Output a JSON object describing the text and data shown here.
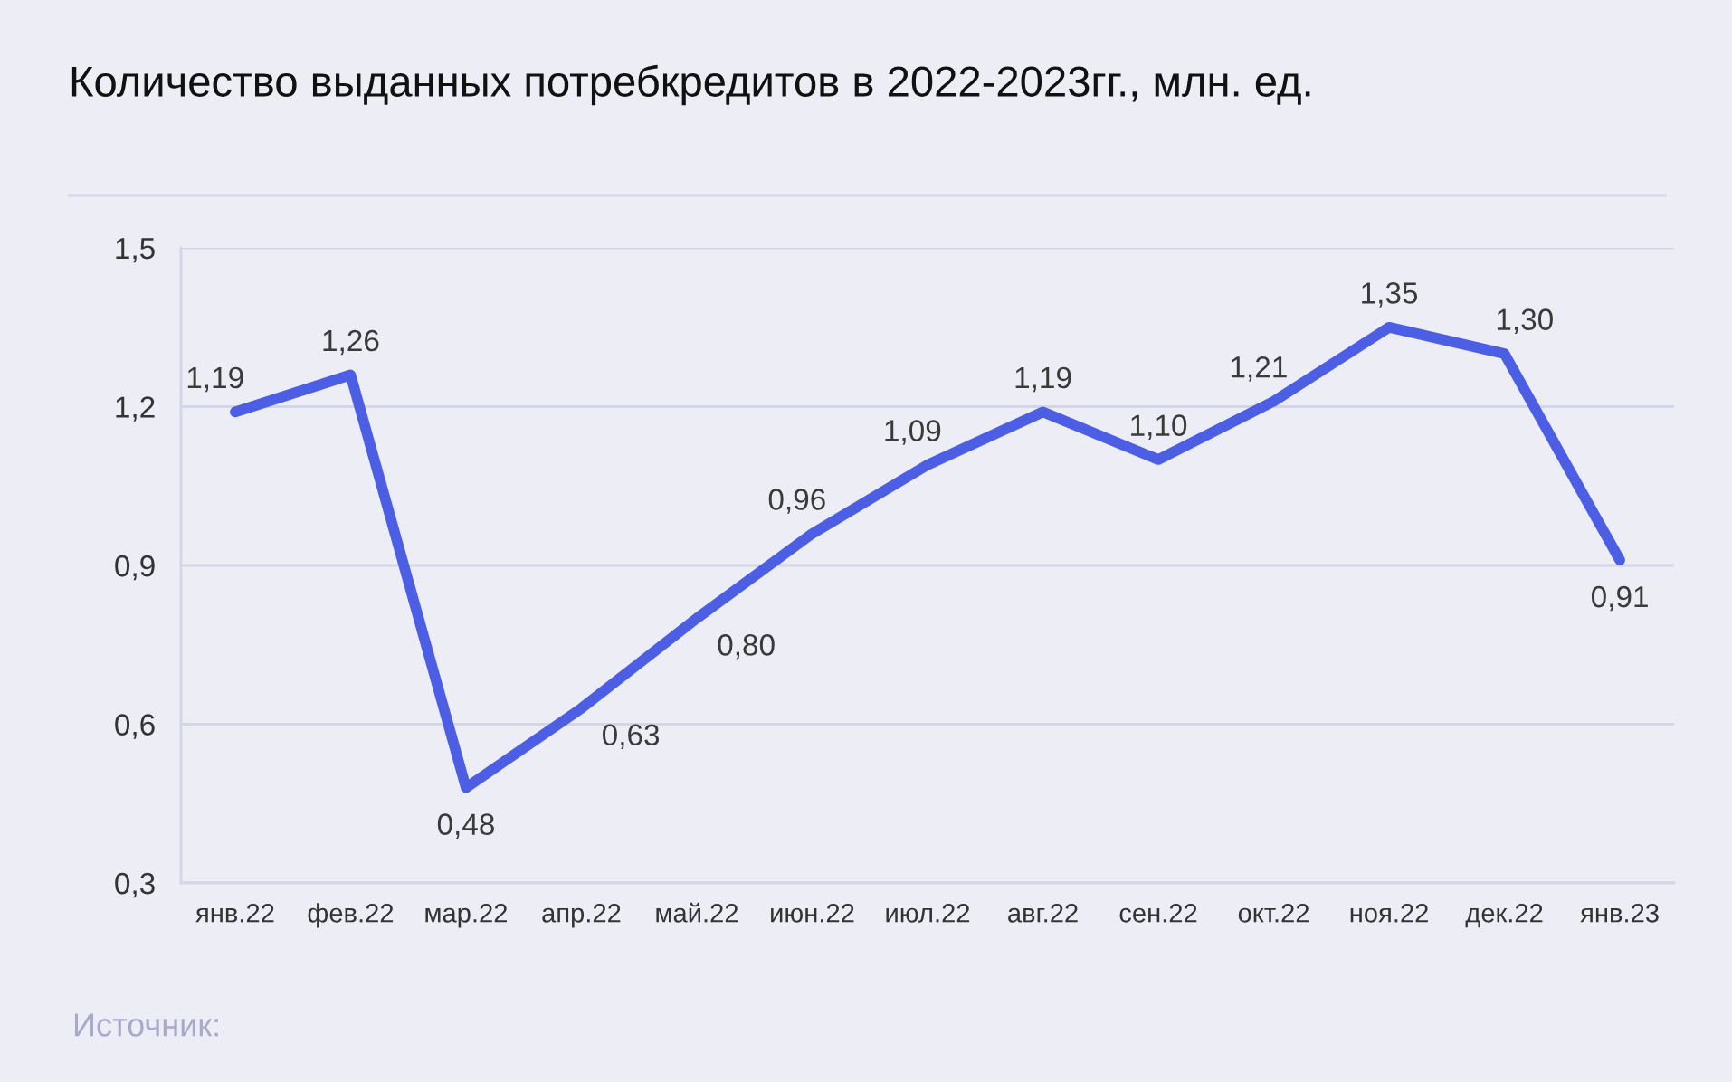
{
  "chart_data": {
    "type": "line",
    "title": "Количество выданных потребкредитов в 2022-2023гг., млн. ед.",
    "categories": [
      "янв.22",
      "фев.22",
      "мар.22",
      "апр.22",
      "май.22",
      "июн.22",
      "июл.22",
      "авг.22",
      "сен.22",
      "окт.22",
      "ноя.22",
      "дек.22",
      "янв.23"
    ],
    "series": [
      {
        "color": "#4b5ee4",
        "values": [
          1.19,
          1.26,
          0.48,
          0.63,
          0.8,
          0.96,
          1.09,
          1.19,
          1.1,
          1.21,
          1.35,
          1.3,
          0.91
        ],
        "value_labels": [
          "1,19",
          "1,26",
          "0,48",
          "0,63",
          "0,80",
          "0,96",
          "1,09",
          "1,19",
          "1,10",
          "1,21",
          "1,35",
          "1,30",
          "0,91"
        ]
      }
    ],
    "ylim": [
      0.3,
      1.5
    ],
    "yticks": [
      {
        "value": 0.3,
        "label": "0,3"
      },
      {
        "value": 0.6,
        "label": "0,6"
      },
      {
        "value": 0.9,
        "label": "0,9"
      },
      {
        "value": 1.2,
        "label": "1,2"
      },
      {
        "value": 1.5,
        "label": "1,5"
      }
    ],
    "grid": "y",
    "marker": "none",
    "line_style": "solid",
    "annotations": [
      "Источник:"
    ]
  }
}
